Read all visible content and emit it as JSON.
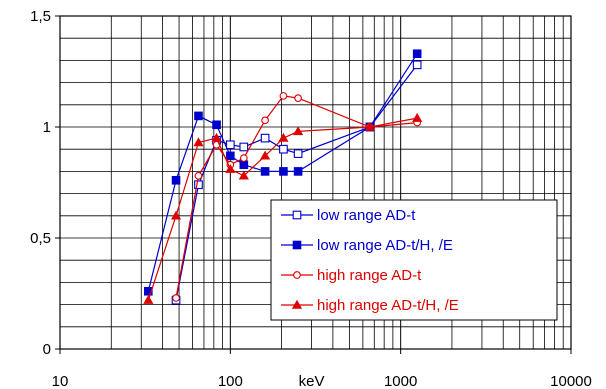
{
  "chart_data": {
    "type": "line",
    "title": "",
    "xlabel": "keV",
    "ylabel": "",
    "x_scale": "log",
    "xlim": [
      10,
      10000
    ],
    "ylim": [
      0,
      1.5
    ],
    "x_ticks": [
      {
        "value": 10,
        "label": "10"
      },
      {
        "value": 100,
        "label": "100"
      },
      {
        "value": 1000,
        "label": "1000"
      },
      {
        "value": 10000,
        "label": "10000"
      }
    ],
    "y_ticks": [
      {
        "value": 0,
        "label": "0"
      },
      {
        "value": 0.5,
        "label": "0,5"
      },
      {
        "value": 1,
        "label": "1"
      },
      {
        "value": 1.5,
        "label": "1,5"
      }
    ],
    "grid": true,
    "legend_position": "lower-right",
    "series": [
      {
        "name": "low range AD-t",
        "color": "#0000cc",
        "marker": "square-open",
        "x": [
          48,
          65,
          83,
          100,
          120,
          160,
          205,
          250,
          660,
          1250
        ],
        "y": [
          0.22,
          0.74,
          0.94,
          0.92,
          0.91,
          0.95,
          0.9,
          0.88,
          1.0,
          1.28
        ]
      },
      {
        "name": "low range AD-t/H, /E",
        "color": "#0000cc",
        "marker": "square-filled",
        "x": [
          33,
          48,
          65,
          83,
          100,
          120,
          160,
          205,
          250,
          660,
          1250
        ],
        "y": [
          0.26,
          0.76,
          1.05,
          1.01,
          0.87,
          0.83,
          0.8,
          0.8,
          0.8,
          1.0,
          1.33
        ]
      },
      {
        "name": "high range AD-t",
        "color": "#dd0000",
        "marker": "circle-open",
        "x": [
          48,
          65,
          83,
          100,
          120,
          160,
          205,
          250,
          660,
          1250
        ],
        "y": [
          0.23,
          0.78,
          0.92,
          0.83,
          0.86,
          1.03,
          1.14,
          1.13,
          1.0,
          1.02
        ]
      },
      {
        "name": "high range AD-t/H, /E",
        "color": "#dd0000",
        "marker": "triangle-filled",
        "x": [
          33,
          48,
          65,
          83,
          100,
          120,
          160,
          205,
          250,
          660,
          1250
        ],
        "y": [
          0.22,
          0.6,
          0.93,
          0.95,
          0.81,
          0.78,
          0.87,
          0.95,
          0.98,
          1.0,
          1.04
        ]
      }
    ]
  }
}
